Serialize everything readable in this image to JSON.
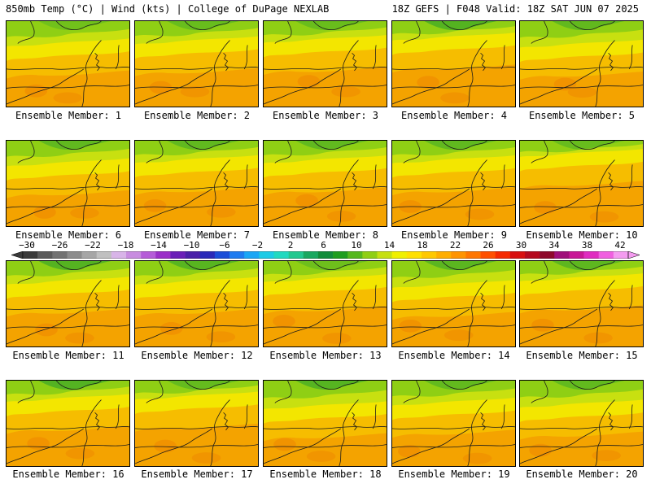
{
  "header": {
    "left": "850mb Temp (°C) | Wind (kts) | College of DuPage NEXLAB",
    "right": "18Z GEFS | F048 Valid: 18Z SAT JUN 07 2025"
  },
  "panels": [
    {
      "label": "Ensemble Member: 1",
      "member": 1
    },
    {
      "label": "Ensemble Member: 2",
      "member": 2
    },
    {
      "label": "Ensemble Member: 3",
      "member": 3
    },
    {
      "label": "Ensemble Member: 4",
      "member": 4
    },
    {
      "label": "Ensemble Member: 5",
      "member": 5
    },
    {
      "label": "Ensemble Member: 6",
      "member": 6
    },
    {
      "label": "Ensemble Member: 7",
      "member": 7
    },
    {
      "label": "Ensemble Member: 8",
      "member": 8
    },
    {
      "label": "Ensemble Member: 9",
      "member": 9
    },
    {
      "label": "Ensemble Member: 10",
      "member": 10
    },
    {
      "label": "Ensemble Member: 11",
      "member": 11
    },
    {
      "label": "Ensemble Member: 12",
      "member": 12
    },
    {
      "label": "Ensemble Member: 13",
      "member": 13
    },
    {
      "label": "Ensemble Member: 14",
      "member": 14
    },
    {
      "label": "Ensemble Member: 15",
      "member": 15
    },
    {
      "label": "Ensemble Member: 16",
      "member": 16
    },
    {
      "label": "Ensemble Member: 17",
      "member": 17
    },
    {
      "label": "Ensemble Member: 18",
      "member": 18
    },
    {
      "label": "Ensemble Member: 19",
      "member": 19
    },
    {
      "label": "Ensemble Member: 20",
      "member": 20
    }
  ],
  "colorbar": {
    "labels": [
      "−30",
      "−26",
      "−22",
      "−18",
      "−14",
      "−10",
      "−6",
      "−2",
      "2",
      "6",
      "10",
      "14",
      "18",
      "22",
      "26",
      "30",
      "34",
      "38",
      "42"
    ],
    "colors": [
      "#3a3a3a",
      "#5a5a5a",
      "#727272",
      "#8c8c8c",
      "#a6a6a6",
      "#c0c0c0",
      "#d8b4e8",
      "#c88ce0",
      "#b55cd8",
      "#9b2fc8",
      "#6a1fb8",
      "#4a20a8",
      "#2a2ab8",
      "#1b4ed8",
      "#1e7cf0",
      "#1aa6f5",
      "#1ccbe6",
      "#22d9c0",
      "#22c88f",
      "#1aa860",
      "#128c3a",
      "#1f9e1f",
      "#55b81e",
      "#8fcf14",
      "#c6e012",
      "#f0f000",
      "#ffe000",
      "#ffc800",
      "#ffae00",
      "#ff9400",
      "#ff7600",
      "#ff5000",
      "#f52a00",
      "#d81010",
      "#b40a1e",
      "#8e0a2c",
      "#a0107a",
      "#c81896",
      "#e02cc0",
      "#f060e0",
      "#f49cf0"
    ]
  }
}
